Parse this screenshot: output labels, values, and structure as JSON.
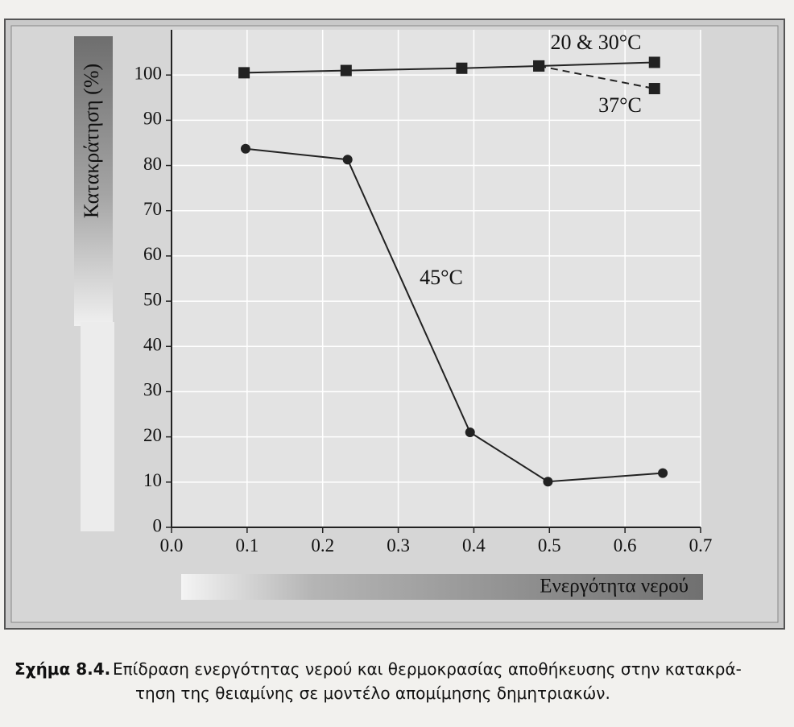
{
  "chart_data": {
    "type": "line",
    "y_label": "Κατακράτηση (%)",
    "x_label": "Ενεργότητα νερού",
    "xlim": [
      0,
      0.7
    ],
    "ylim": [
      0,
      110
    ],
    "xticks": [
      {
        "value": 0,
        "label": "0.0"
      },
      0.1,
      0.2,
      0.3,
      0.4,
      0.5,
      0.6,
      0.7
    ],
    "yticks": [
      0,
      10,
      20,
      30,
      40,
      50,
      60,
      70,
      80,
      90,
      100
    ],
    "grid": true,
    "series": [
      {
        "name": "20 & 30°C",
        "color": "#222222",
        "marker": "square",
        "dash": false,
        "x": [
          0.096,
          0.231,
          0.384,
          0.486,
          0.639
        ],
        "values": [
          100.5,
          101,
          101.5,
          102,
          102.8
        ]
      },
      {
        "name": "37°C",
        "color": "#222222",
        "marker": "square",
        "dash": true,
        "x": [
          0.486,
          0.639
        ],
        "values": [
          102,
          97
        ]
      },
      {
        "name": "45°C",
        "color": "#222222",
        "marker": "circle",
        "dash": false,
        "x": [
          0.098,
          0.233,
          0.395,
          0.498,
          0.65
        ],
        "values": [
          83.7,
          81.3,
          21,
          10.1,
          12
        ]
      }
    ]
  },
  "caption": {
    "label": "Σχήμα 8.4.",
    "lines": [
      "Επίδραση ενεργότητας νερού και θερμοκρασίας αποθήκευσης στην κατακρά-",
      "τηση της θειαμίνης σε μοντέλο απομίμησης δημητριακών."
    ]
  }
}
